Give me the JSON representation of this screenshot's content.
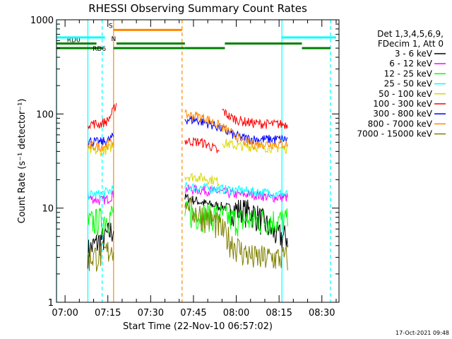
{
  "chart_data": {
    "type": "line",
    "title": "RHESSI Observing Summary Count Rates",
    "xlabel": "Start Time (22-Nov-10 06:57:02)",
    "ylabel": "Count Rate (s⁻¹ detector⁻¹)",
    "yscale": "log",
    "ylim": [
      1,
      1000
    ],
    "xlim": [
      "06:57",
      "08:36"
    ],
    "xticks": [
      "07:00",
      "07:15",
      "07:30",
      "07:45",
      "08:00",
      "08:15",
      "08:30"
    ],
    "yticks": [
      "1",
      "10",
      "100",
      "1000"
    ],
    "timestamp": "17-Oct-2021 09:48",
    "legend_header": [
      "Det 1,3,4,5,6,9,",
      "FDecim 1, Att 0"
    ],
    "legend_position": "right",
    "series": [
      {
        "name": "3 - 6 keV",
        "color": "#000000",
        "segments": [
          {
            "x": [
              "07:08",
              "07:10",
              "07:12",
              "07:14",
              "07:17"
            ],
            "y": [
              3.5,
              4,
              4.5,
              5,
              6
            ]
          },
          {
            "x": [
              "07:42",
              "07:46",
              "07:50",
              "07:54",
              "07:58",
              "08:02",
              "08:06",
              "08:10",
              "08:13",
              "08:16",
              "08:18"
            ],
            "y": [
              13,
              12,
              11,
              10.5,
              10,
              9.5,
              9,
              7,
              5.5,
              5,
              5
            ]
          }
        ]
      },
      {
        "name": "6 - 12 keV",
        "color": "#ff00ff",
        "segments": [
          {
            "x": [
              "07:08",
              "07:12",
              "07:15",
              "07:17"
            ],
            "y": [
              13,
              12,
              12.5,
              14
            ]
          },
          {
            "x": [
              "07:42",
              "07:48",
              "07:54",
              "08:00",
              "08:06",
              "08:12",
              "08:18"
            ],
            "y": [
              16,
              15.5,
              15,
              14,
              14,
              13,
              13
            ]
          }
        ]
      },
      {
        "name": "12 - 25 keV",
        "color": "#00ff00",
        "segments": [
          {
            "x": [
              "07:08",
              "07:12",
              "07:15",
              "07:17"
            ],
            "y": [
              7,
              7.5,
              8,
              9
            ]
          },
          {
            "x": [
              "07:42",
              "07:48",
              "07:54",
              "08:00",
              "08:06",
              "08:12",
              "08:18"
            ],
            "y": [
              9,
              8.5,
              8.5,
              7.5,
              7.5,
              7.5,
              7.5
            ]
          }
        ]
      },
      {
        "name": "25 - 50 keV",
        "color": "#00ffff",
        "segments": [
          {
            "x": [
              "07:08",
              "07:12",
              "07:15",
              "07:17"
            ],
            "y": [
              14,
              14,
              15,
              16
            ]
          },
          {
            "x": [
              "07:42",
              "07:48",
              "07:54",
              "08:00",
              "08:06",
              "08:12",
              "08:18"
            ],
            "y": [
              17,
              16.5,
              16,
              15.5,
              15,
              14.5,
              14
            ]
          }
        ]
      },
      {
        "name": "50 - 100 keV",
        "color": "#d8d800",
        "segments": [
          {
            "x": [
              "07:08",
              "07:12",
              "07:15",
              "07:17"
            ],
            "y": [
              41,
              40,
              42,
              46
            ]
          },
          {
            "x": [
              "07:42",
              "07:48",
              "07:52",
              "07:54"
            ],
            "y": [
              22,
              21,
              20,
              19
            ]
          },
          {
            "x": [
              "07:55",
              "08:00",
              "08:06",
              "08:12",
              "08:18"
            ],
            "y": [
              50,
              46,
              45,
              44,
              43
            ]
          }
        ]
      },
      {
        "name": "100 - 300 keV",
        "color": "#ff0000",
        "segments": [
          {
            "x": [
              "07:08",
              "07:12",
              "07:15",
              "07:17",
              "07:18"
            ],
            "y": [
              80,
              78,
              85,
              110,
              130
            ]
          },
          {
            "x": [
              "07:42",
              "07:48",
              "07:52",
              "07:54"
            ],
            "y": [
              52,
              50,
              44,
              38
            ]
          },
          {
            "x": [
              "07:55",
              "07:58",
              "08:02",
              "08:06",
              "08:12",
              "08:18"
            ],
            "y": [
              110,
              92,
              84,
              80,
              78,
              78
            ]
          }
        ]
      },
      {
        "name": "300 - 800 keV",
        "color": "#0000ff",
        "segments": [
          {
            "x": [
              "07:08",
              "07:12",
              "07:15",
              "07:17"
            ],
            "y": [
              52,
              50,
              52,
              58
            ]
          },
          {
            "x": [
              "07:42",
              "07:46",
              "07:50",
              "07:54",
              "07:58",
              "08:02",
              "08:06",
              "08:12",
              "08:18"
            ],
            "y": [
              88,
              86,
              80,
              72,
              62,
              56,
              54,
              54,
              54
            ]
          }
        ]
      },
      {
        "name": "800 - 7000 keV",
        "color": "#ff8800",
        "segments": [
          {
            "x": [
              "07:08",
              "07:12",
              "07:15",
              "07:17"
            ],
            "y": [
              46,
              45,
              47,
              52
            ]
          },
          {
            "x": [
              "07:42",
              "07:46",
              "07:50",
              "07:54",
              "07:58",
              "08:02",
              "08:06",
              "08:12",
              "08:18"
            ],
            "y": [
              98,
              96,
              88,
              76,
              64,
              52,
              48,
              48,
              48
            ]
          }
        ]
      },
      {
        "name": "7000 - 15000 keV",
        "color": "#808000",
        "segments": [
          {
            "x": [
              "07:08",
              "07:12",
              "07:15",
              "07:17"
            ],
            "y": [
              3,
              3.2,
              3.5,
              4
            ]
          },
          {
            "x": [
              "07:42",
              "07:46",
              "07:50",
              "07:54",
              "07:58",
              "08:02",
              "08:06",
              "08:12",
              "08:18"
            ],
            "y": [
              11,
              9,
              8,
              6.5,
              4.5,
              3.5,
              3,
              3,
              3
            ]
          }
        ]
      }
    ],
    "flag_bars": [
      {
        "name": "RD0",
        "label_at": "07:03",
        "color": "#008000",
        "level": 560,
        "intervals": [
          [
            "06:57",
            "07:11"
          ],
          [
            "07:18",
            "07:42"
          ],
          [
            "07:56",
            "08:23"
          ]
        ]
      },
      {
        "name": "RD6",
        "label_at": "07:12",
        "color": "#008000",
        "level": 500,
        "intervals": [
          [
            "06:57",
            "07:13"
          ],
          [
            "07:17",
            "07:42"
          ],
          [
            "07:42",
            "07:56"
          ],
          [
            "08:23",
            "08:33"
          ]
        ]
      },
      {
        "name": "S",
        "label_at": "07:16",
        "color": "#ff8800",
        "level": 780,
        "intervals": [
          [
            "07:17",
            "07:41"
          ]
        ]
      },
      {
        "name": "N",
        "label_at": "07:17",
        "color": "#00ffff",
        "level": 650,
        "intervals": [
          [
            "06:57",
            "07:14"
          ],
          [
            "08:16",
            "08:35"
          ]
        ]
      }
    ],
    "vertical_markers": [
      {
        "x": "07:13",
        "color": "#00ffff",
        "style": "dashed"
      },
      {
        "x": "07:41",
        "color": "#ff8800",
        "style": "dashed"
      },
      {
        "x": "08:33",
        "color": "#00ffff",
        "style": "dashed"
      },
      {
        "x": "06:57",
        "color": "#00ffff",
        "style": "solid"
      },
      {
        "x": "07:08",
        "color": "#00ffff",
        "style": "solid"
      },
      {
        "x": "07:17",
        "color": "#ff8800",
        "style": "solid"
      },
      {
        "x": "08:16",
        "color": "#00ffff",
        "style": "solid"
      }
    ]
  }
}
